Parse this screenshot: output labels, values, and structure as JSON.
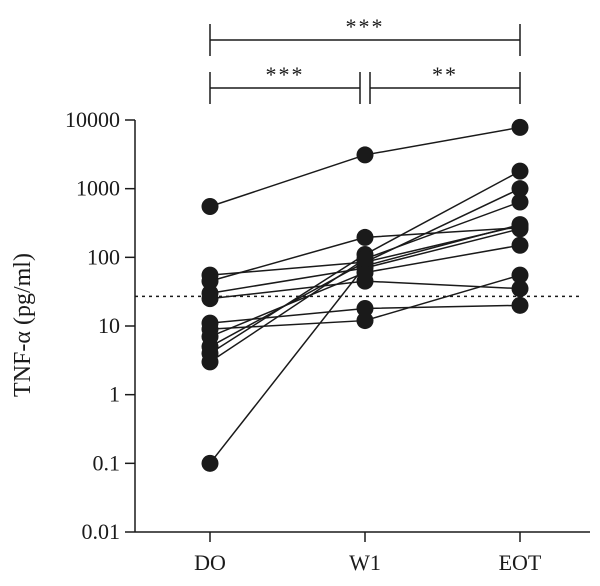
{
  "chart_data": {
    "type": "line",
    "title": "",
    "xlabel": "",
    "ylabel": "TNF-α (pg/ml)",
    "yscale": "log",
    "ylim": [
      0.01,
      10000
    ],
    "yticks": [
      {
        "value": 10000,
        "label": "10000"
      },
      {
        "value": 1000,
        "label": "1000"
      },
      {
        "value": 100,
        "label": "100"
      },
      {
        "value": 10,
        "label": "10"
      },
      {
        "value": 1,
        "label": "1"
      },
      {
        "value": 0.1,
        "label": "0.1"
      },
      {
        "value": 0.01,
        "label": "0.01"
      }
    ],
    "categories": [
      "DO",
      "W1",
      "EOT"
    ],
    "threshold": 27,
    "series": [
      {
        "values": [
          550,
          3100,
          7800
        ]
      },
      {
        "values": [
          0.1,
          75,
          300
        ]
      },
      {
        "values": [
          55,
          85,
          290
        ]
      },
      {
        "values": [
          45,
          195,
          270
        ]
      },
      {
        "values": [
          30,
          70,
          260
        ]
      },
      {
        "values": [
          25,
          45,
          35
        ]
      },
      {
        "values": [
          11,
          18,
          20
        ]
      },
      {
        "values": [
          9,
          12,
          55
        ]
      },
      {
        "values": [
          7,
          60,
          150
        ]
      },
      {
        "values": [
          5,
          85,
          1000
        ]
      },
      {
        "values": [
          4,
          110,
          1800
        ]
      },
      {
        "values": [
          3,
          95,
          640
        ]
      }
    ],
    "significance": [
      {
        "from": 0,
        "to": 2,
        "label": "***"
      },
      {
        "from": 0,
        "to": 1,
        "label": "***"
      },
      {
        "from": 1,
        "to": 2,
        "label": "**"
      }
    ],
    "grid": false,
    "legend": "none",
    "colors": {
      "marker": "#1a1a1a",
      "line": "#1a1a1a",
      "threshold": "#1a1a1a"
    }
  }
}
